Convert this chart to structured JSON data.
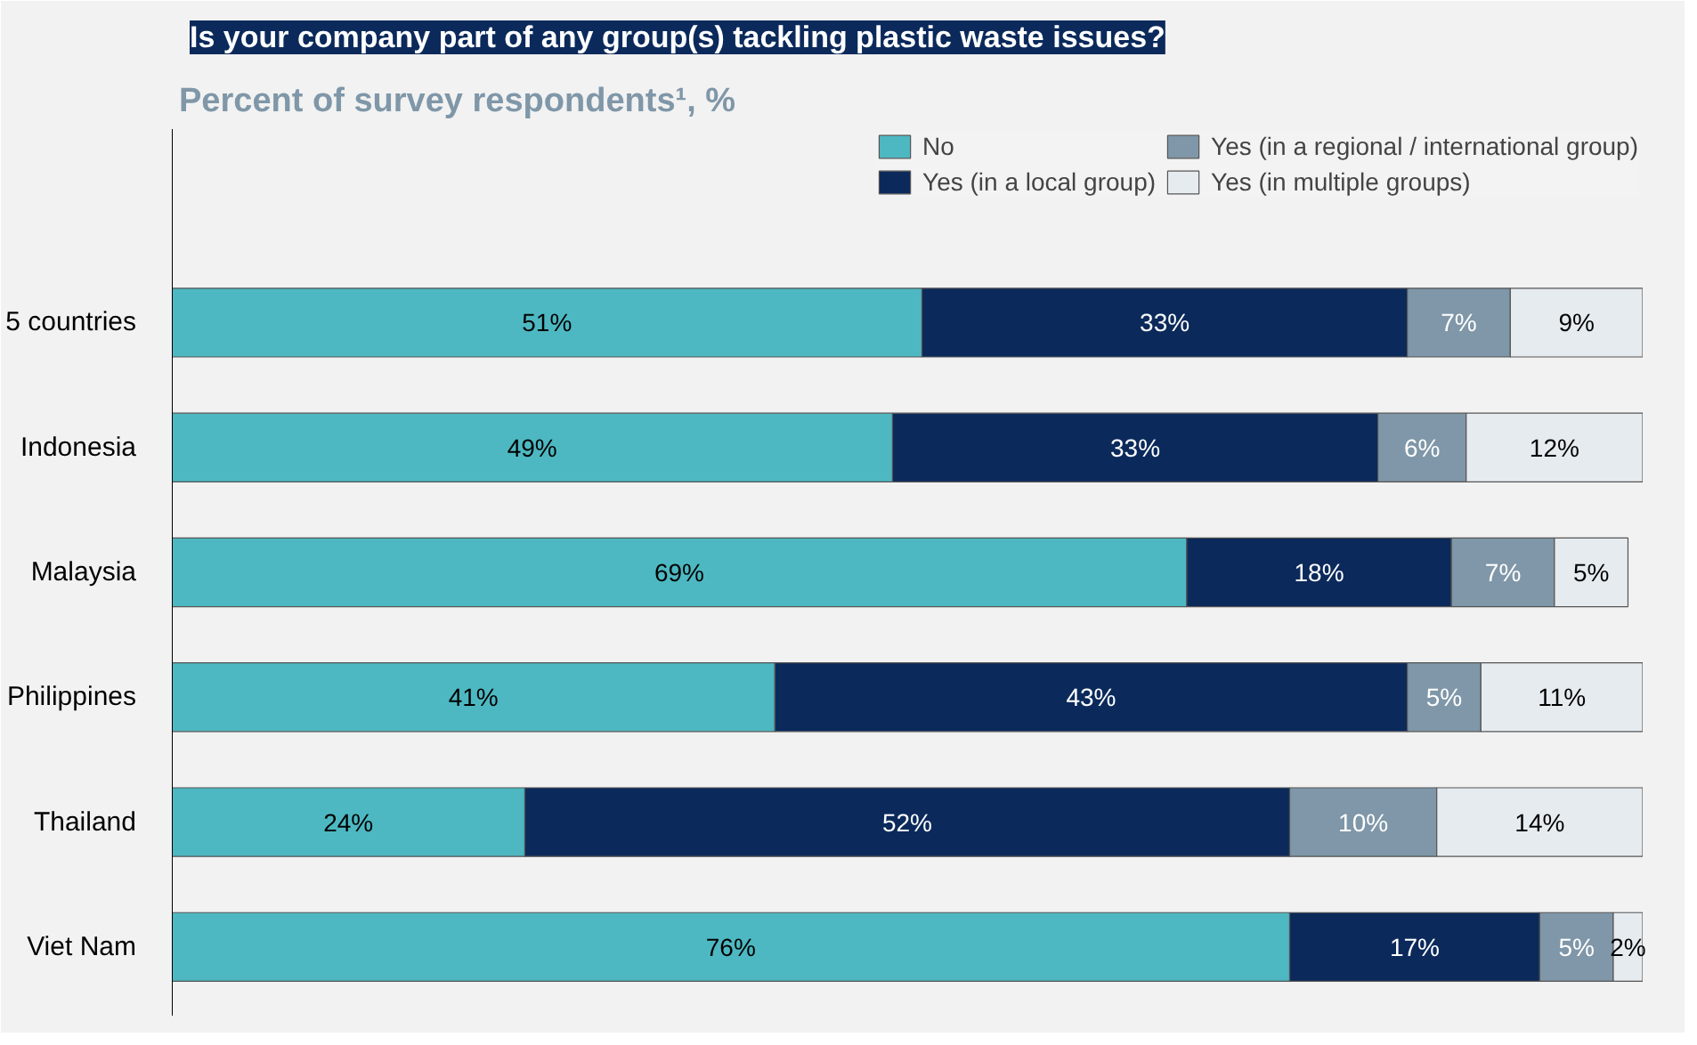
{
  "chart_data": {
    "type": "bar",
    "orientation": "horizontal",
    "stacked": true,
    "title": "Is your company part of any group(s) tackling plastic waste issues?",
    "subtitle": "Percent of survey respondents¹, %",
    "categories": [
      "5 countries",
      "Indonesia",
      "Malaysia",
      "Philippines",
      "Thailand",
      "Viet Nam"
    ],
    "series": [
      {
        "name": "No",
        "color": "#4db8c2",
        "values": [
          51,
          49,
          69,
          41,
          24,
          76
        ],
        "value_labels": [
          "51%",
          "49%",
          "69%",
          "41%",
          "24%",
          "76%"
        ]
      },
      {
        "name": "Yes (in a local group)",
        "color": "#0b2a5b",
        "values": [
          33,
          33,
          18,
          43,
          52,
          17
        ],
        "value_labels": [
          "33%",
          "33%",
          "18%",
          "43%",
          "52%",
          "17%"
        ]
      },
      {
        "name": "Yes (in a regional / international group)",
        "color": "#7f97a8",
        "values": [
          7,
          6,
          7,
          5,
          10,
          5
        ],
        "value_labels": [
          "7%",
          "6%",
          "7%",
          "5%",
          "10%",
          "5%"
        ]
      },
      {
        "name": "Yes (in multiple groups)",
        "color": "#e6ebef",
        "values": [
          9,
          12,
          5,
          11,
          14,
          2
        ],
        "value_labels": [
          "9%",
          "12%",
          "5%",
          "11%",
          "14%",
          "2%"
        ]
      }
    ],
    "legend": "top"
  }
}
